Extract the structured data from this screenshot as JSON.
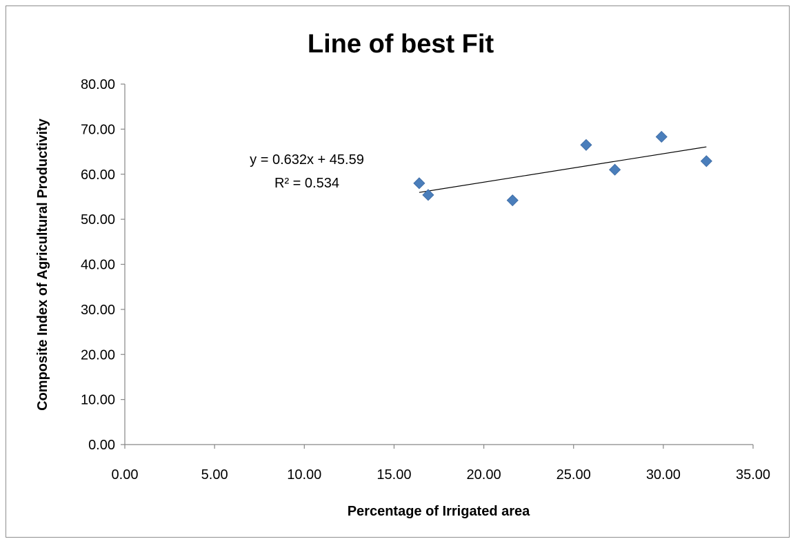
{
  "chart_data": {
    "type": "scatter",
    "title": "Line of best Fit",
    "xlabel": "Percentage of Irrigated area",
    "ylabel": "Composite Index of Agricultural Productivity",
    "xlim": [
      0,
      35
    ],
    "ylim": [
      0,
      80
    ],
    "x_ticks": [
      "0.00",
      "5.00",
      "10.00",
      "15.00",
      "20.00",
      "25.00",
      "30.00",
      "35.00"
    ],
    "y_ticks": [
      "0.00",
      "10.00",
      "20.00",
      "30.00",
      "40.00",
      "50.00",
      "60.00",
      "70.00",
      "80.00"
    ],
    "grid": false,
    "legend": "none",
    "marker": "diamond",
    "marker_color": "#4a7ebb",
    "series": [
      {
        "points": [
          {
            "x": 16.4,
            "y": 58.0
          },
          {
            "x": 16.9,
            "y": 55.4
          },
          {
            "x": 21.6,
            "y": 54.2
          },
          {
            "x": 25.7,
            "y": 66.5
          },
          {
            "x": 27.3,
            "y": 61.0
          },
          {
            "x": 29.9,
            "y": 68.3
          },
          {
            "x": 32.4,
            "y": 62.9
          }
        ]
      }
    ],
    "trendline": {
      "slope": 0.632,
      "intercept": 45.59,
      "x_range": [
        16.4,
        32.4
      ],
      "equation_text": "y = 0.632x + 45.59",
      "r2_text": "R² = 0.534"
    }
  }
}
